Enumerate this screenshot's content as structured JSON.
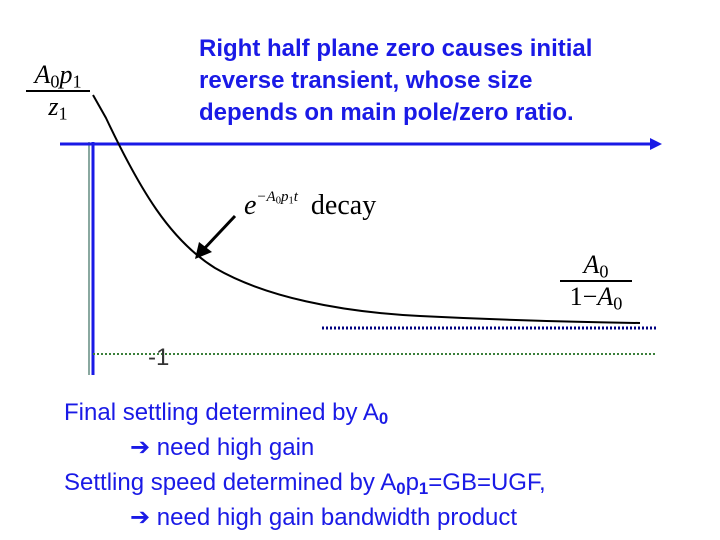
{
  "headline": {
    "line1": "Right half plane zero causes initial",
    "line2": "reverse transient, whose size",
    "line3": "depends on main pole/zero ratio."
  },
  "left_fraction": {
    "num_A": "A",
    "num_A_sub": "0",
    "num_p": "p",
    "num_p_sub": "1",
    "den_z": "z",
    "den_z_sub": "1"
  },
  "right_fraction": {
    "num_A": "A",
    "num_A_sub": "0",
    "den_prefix": "1−",
    "den_A": "A",
    "den_A_sub": "0"
  },
  "decay_label": {
    "base": "e",
    "exp_prefix": "−A",
    "exp_sub0": "0",
    "exp_p": "p",
    "exp_sub1": "1",
    "exp_t": "t",
    "word": "decay"
  },
  "neg_one_label": "-1",
  "notes": {
    "line1_text": "Final settling determined by A",
    "line1_sub": "0",
    "line2_arrow": "➔",
    "line2_text": " need high gain",
    "line3_text_a": "Settling speed determined by A",
    "line3_sub_a": "0",
    "line3_text_b": "p",
    "line3_sub_b": "1",
    "line3_text_c": "=GB=UGF,",
    "line4_arrow": "➔",
    "line4_text": " need high gain bandwidth product"
  },
  "colors": {
    "text_blue": "#1a1ae6",
    "axis_blue": "#1a1ae6",
    "curve": "#000000",
    "dotted": "#000080",
    "minus_one_dotted": "#3a7f3a"
  }
}
